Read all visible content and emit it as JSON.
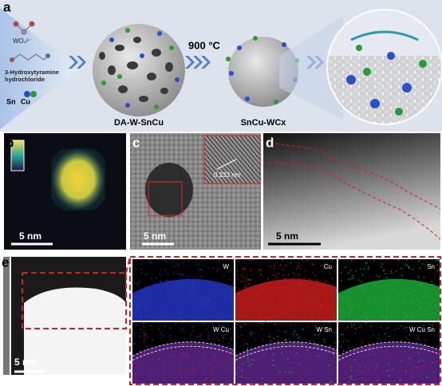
{
  "panel_a": {
    "label": "a",
    "anion": "WO₄²⁻",
    "ligand": "3-Hydroxytyramine hydrochloride",
    "metal_sn": "Sn",
    "metal_cu": "Cu",
    "intermediate": "DA-W-SnCu",
    "temperature": "900 °C",
    "product": "SnCu-WCx"
  },
  "panel_b": {
    "label": "b",
    "scale_bar": "5 nm"
  },
  "panel_c": {
    "label": "c",
    "scale_bar": "5 nm",
    "lattice_spacing": "0.233 nm"
  },
  "panel_d": {
    "label": "d",
    "scale_bar": "5 nm"
  },
  "panel_e": {
    "label": "e",
    "scale_bar": "5 nm",
    "maps": [
      "W",
      "Cu",
      "Sn",
      "W Cu",
      "W Sn",
      "W Cu Sn"
    ]
  }
}
